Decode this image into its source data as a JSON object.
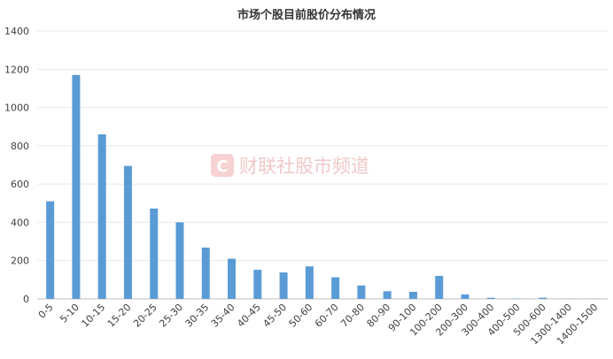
{
  "watermark": {
    "logo_letter": "C",
    "text": "财联社股市频道"
  },
  "chart_data": {
    "type": "bar",
    "title": "市场个股目前股价分布情况",
    "xlabel": "",
    "ylabel": "",
    "categories": [
      "0-5",
      "5-10",
      "10-15",
      "15-20",
      "20-25",
      "25-30",
      "30-35",
      "35-40",
      "40-45",
      "45-50",
      "50-60",
      "60-70",
      "70-80",
      "80-90",
      "90-100",
      "100-200",
      "200-300",
      "300-400",
      "400-500",
      "500-600",
      "1300-1400",
      "1400-1500"
    ],
    "values": [
      510,
      1170,
      860,
      695,
      472,
      400,
      268,
      210,
      152,
      138,
      170,
      113,
      70,
      40,
      37,
      120,
      23,
      6,
      2,
      6,
      1,
      1
    ],
    "ylim": [
      0,
      1400
    ],
    "yticks": [
      0,
      200,
      400,
      600,
      800,
      1000,
      1200,
      1400
    ],
    "grid": true,
    "legend": "none",
    "bar_color": "#5b9bd5",
    "grid_color": "#e8e8e8",
    "axis_color": "#bfbfbf"
  }
}
